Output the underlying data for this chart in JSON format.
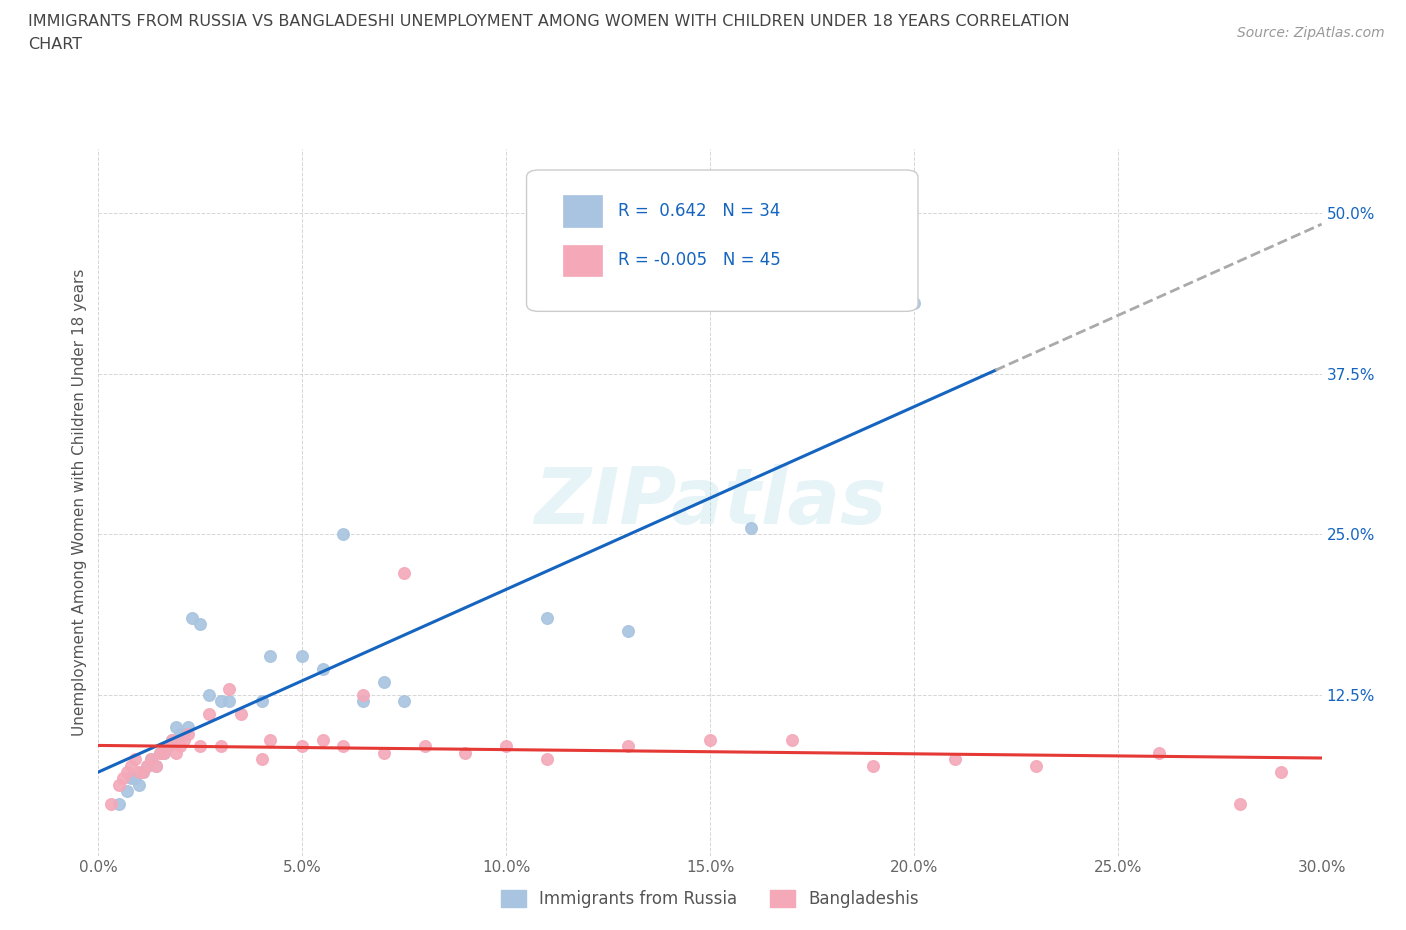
{
  "title_line1": "IMMIGRANTS FROM RUSSIA VS BANGLADESHI UNEMPLOYMENT AMONG WOMEN WITH CHILDREN UNDER 18 YEARS CORRELATION",
  "title_line2": "CHART",
  "source": "Source: ZipAtlas.com",
  "ylabel": "Unemployment Among Women with Children Under 18 years",
  "watermark": "ZIPatlas",
  "xlim": [
    0.0,
    0.3
  ],
  "ylim": [
    0.0,
    0.55
  ],
  "x_ticks": [
    0.0,
    0.05,
    0.1,
    0.15,
    0.2,
    0.25,
    0.3
  ],
  "x_tick_labels": [
    "0.0%",
    "5.0%",
    "10.0%",
    "15.0%",
    "20.0%",
    "25.0%",
    "30.0%"
  ],
  "y_ticks": [
    0.0,
    0.125,
    0.25,
    0.375,
    0.5
  ],
  "y_tick_labels": [
    "",
    "12.5%",
    "25.0%",
    "37.5%",
    "50.0%"
  ],
  "legend_labels": [
    "Immigrants from Russia",
    "Bangladeshis"
  ],
  "russia_color": "#a8c4e0",
  "bangladesh_color": "#f4a8b8",
  "russia_line_color": "#1565c0",
  "bangladesh_line_color": "#e53935",
  "russia_R": 0.642,
  "russia_N": 34,
  "bangladesh_R": -0.005,
  "bangladesh_N": 45,
  "background_color": "#ffffff",
  "grid_color": "#cccccc",
  "russia_x": [
    0.005,
    0.007,
    0.008,
    0.009,
    0.01,
    0.011,
    0.012,
    0.013,
    0.014,
    0.015,
    0.016,
    0.017,
    0.018,
    0.019,
    0.02,
    0.021,
    0.022,
    0.023,
    0.025,
    0.027,
    0.03,
    0.032,
    0.04,
    0.042,
    0.05,
    0.055,
    0.06,
    0.065,
    0.07,
    0.075,
    0.11,
    0.13,
    0.16,
    0.2
  ],
  "russia_y": [
    0.04,
    0.05,
    0.06,
    0.06,
    0.055,
    0.065,
    0.07,
    0.075,
    0.07,
    0.08,
    0.08,
    0.085,
    0.09,
    0.1,
    0.095,
    0.095,
    0.1,
    0.185,
    0.18,
    0.125,
    0.12,
    0.12,
    0.12,
    0.155,
    0.155,
    0.145,
    0.25,
    0.12,
    0.135,
    0.12,
    0.185,
    0.175,
    0.255,
    0.43
  ],
  "bangladesh_x": [
    0.003,
    0.005,
    0.006,
    0.007,
    0.008,
    0.009,
    0.01,
    0.011,
    0.012,
    0.013,
    0.014,
    0.015,
    0.016,
    0.017,
    0.018,
    0.019,
    0.02,
    0.021,
    0.022,
    0.025,
    0.027,
    0.03,
    0.032,
    0.035,
    0.04,
    0.042,
    0.05,
    0.055,
    0.06,
    0.065,
    0.07,
    0.075,
    0.08,
    0.09,
    0.1,
    0.11,
    0.13,
    0.15,
    0.17,
    0.19,
    0.21,
    0.23,
    0.26,
    0.28,
    0.29
  ],
  "bangladesh_y": [
    0.04,
    0.055,
    0.06,
    0.065,
    0.07,
    0.075,
    0.065,
    0.065,
    0.07,
    0.075,
    0.07,
    0.08,
    0.08,
    0.085,
    0.09,
    0.08,
    0.085,
    0.09,
    0.095,
    0.085,
    0.11,
    0.085,
    0.13,
    0.11,
    0.075,
    0.09,
    0.085,
    0.09,
    0.085,
    0.125,
    0.08,
    0.22,
    0.085,
    0.08,
    0.085,
    0.075,
    0.085,
    0.09,
    0.09,
    0.07,
    0.075,
    0.07,
    0.08,
    0.04,
    0.065
  ]
}
